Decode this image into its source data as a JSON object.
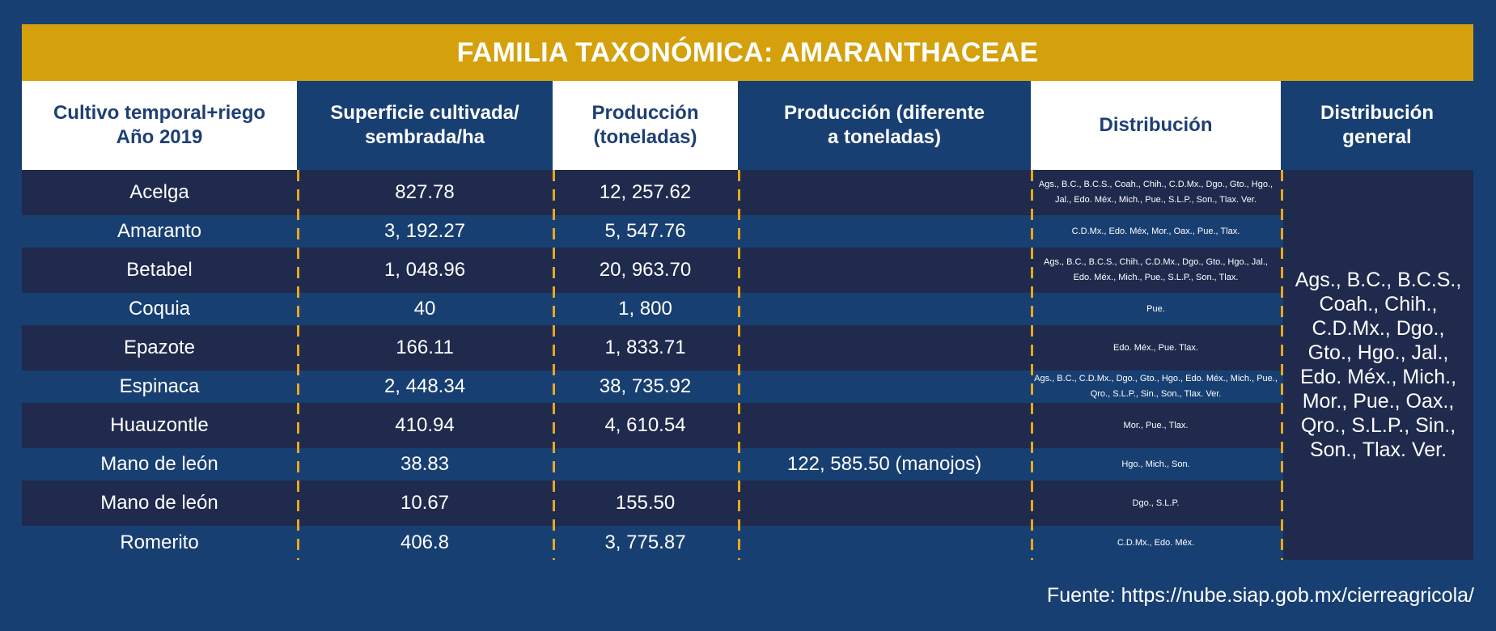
{
  "title": "FAMILIA TAXONÓMICA: AMARANTHACEAE",
  "headers": [
    "Cultivo temporal+riego\nAño 2019",
    "Superficie cultivada/\nsembrada/ha",
    "Producción\n(toneladas)",
    "Producción (diferente\na toneladas)",
    "Distribución",
    "Distribución\ngeneral"
  ],
  "rows": [
    {
      "cultivo": "Acelga",
      "superficie": "827.78",
      "produccion": "12, 257.62",
      "produccion_otra": "",
      "distribucion": "Ags., B.C., B.C.S., Coah., Chih., C.D.Mx., Dgo., Gto., Hgo., Jal., Edo. Méx., Mich., Pue., S.L.P., Son., Tlax. Ver."
    },
    {
      "cultivo": "Amaranto",
      "superficie": "3, 192.27",
      "produccion": "5, 547.76",
      "produccion_otra": "",
      "distribucion": "C.D.Mx., Edo. Méx, Mor., Oax., Pue., Tlax."
    },
    {
      "cultivo": "Betabel",
      "superficie": "1, 048.96",
      "produccion": "20, 963.70",
      "produccion_otra": "",
      "distribucion": "Ags., B.C., B.C.S., Chih., C.D.Mx., Dgo., Gto., Hgo., Jal., Edo. Méx., Mich., Pue., S.L.P., Son., Tlax."
    },
    {
      "cultivo": "Coquia",
      "superficie": "40",
      "produccion": "1, 800",
      "produccion_otra": "",
      "distribucion": "Pue."
    },
    {
      "cultivo": "Epazote",
      "superficie": "166.11",
      "produccion": "1, 833.71",
      "produccion_otra": "",
      "distribucion": "Edo. Méx., Pue. Tlax."
    },
    {
      "cultivo": "Espinaca",
      "superficie": "2, 448.34",
      "produccion": "38, 735.92",
      "produccion_otra": "",
      "distribucion": "Ags., B.C., C.D.Mx., Dgo., Gto., Hgo., Edo. Méx., Mich., Pue., Qro., S.L.P., Sin., Son., Tlax. Ver."
    },
    {
      "cultivo": "Huauzontle",
      "superficie": "410.94",
      "produccion": "4, 610.54",
      "produccion_otra": "",
      "distribucion": "Mor., Pue., Tlax."
    },
    {
      "cultivo": "Mano de león",
      "superficie": "38.83",
      "produccion": "",
      "produccion_otra": "122, 585.50 (manojos)",
      "distribucion": "Hgo., Mich., Son."
    },
    {
      "cultivo": "Mano de león",
      "superficie": "10.67",
      "produccion": "155.50",
      "produccion_otra": "",
      "distribucion": "Dgo., S.L.P."
    },
    {
      "cultivo": "Romerito",
      "superficie": "406.8",
      "produccion": "3, 775.87",
      "produccion_otra": "",
      "distribucion": "C.D.Mx., Edo. Méx."
    }
  ],
  "distribucion_general": "Ags., B.C., B.C.S., Coah., Chih., C.D.Mx., Dgo., Gto., Hgo., Jal., Edo. Méx., Mich., Mor., Pue., Oax., Qro., S.L.P., Sin., Son., Tlax. Ver.",
  "source": "Fuente: https://nube.siap.gob.mx/cierreagricola/",
  "colors": {
    "gold": "#d4a10c",
    "navy": "#183f72",
    "dark_navy": "#1f2a4d",
    "header_text": "#1e3f73",
    "dash": "#e8a81c"
  }
}
